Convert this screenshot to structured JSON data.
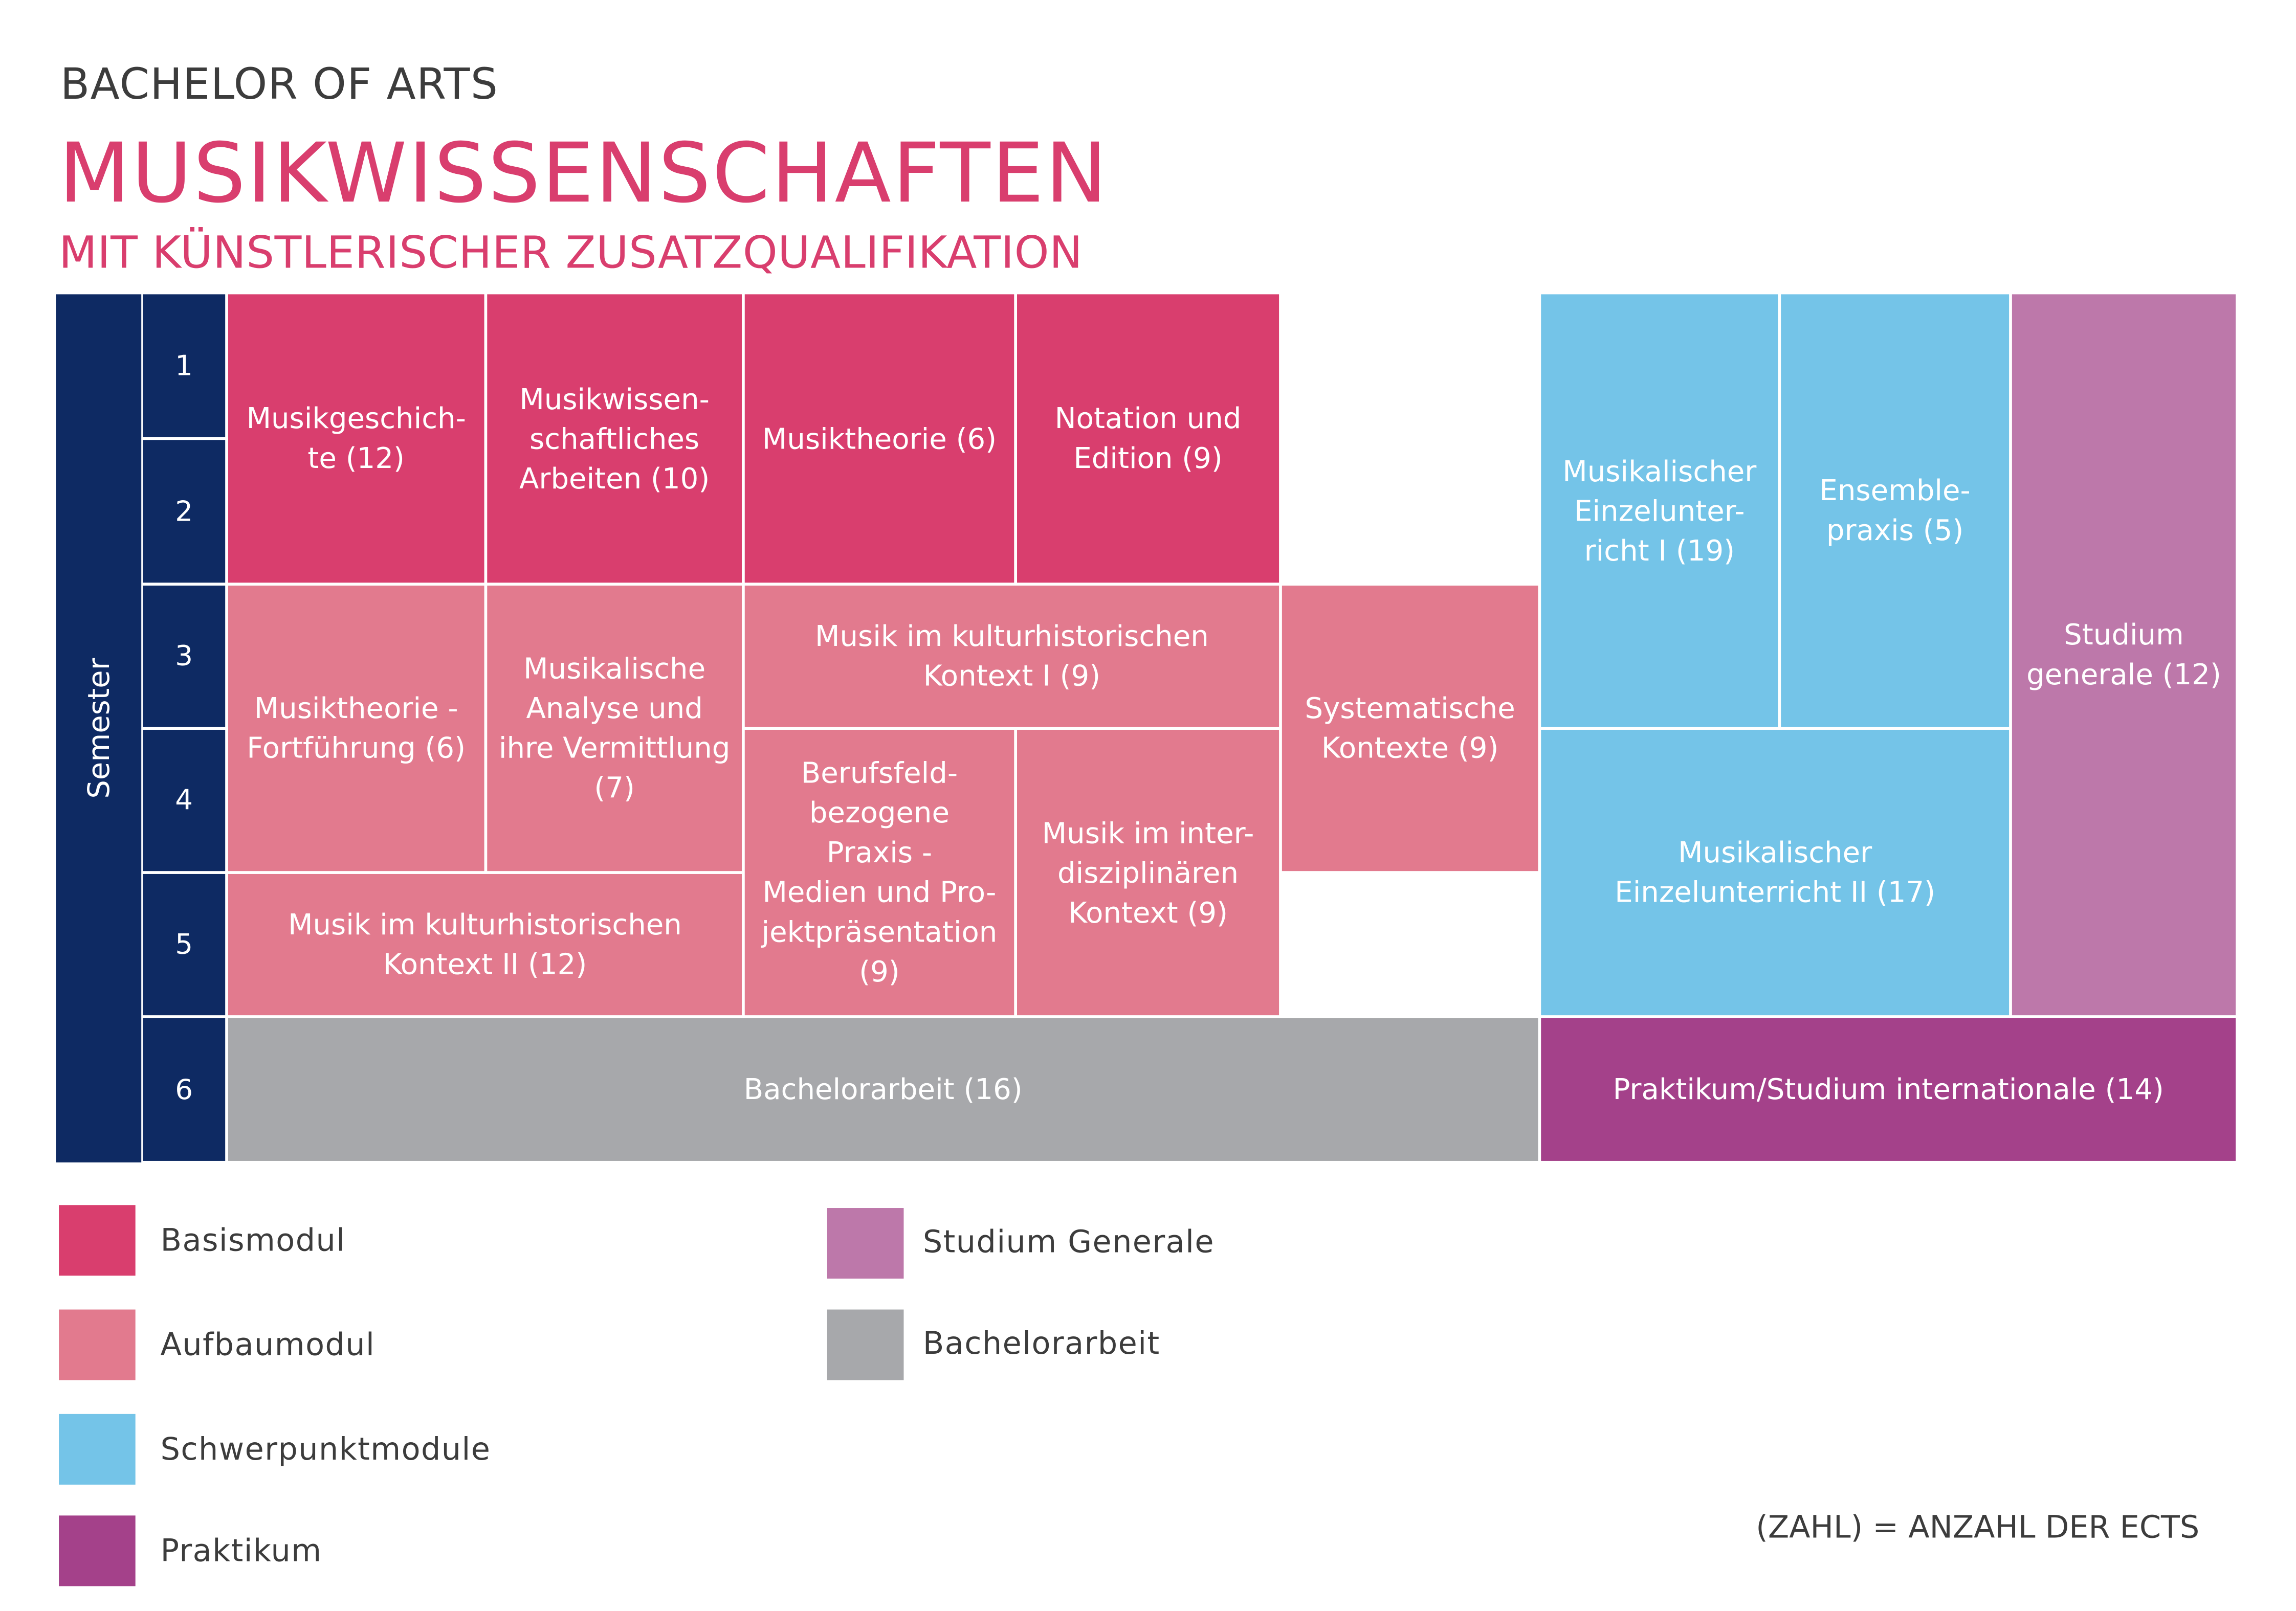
{
  "header": {
    "kicker": "BACHELOR OF ARTS",
    "title": "MUSIKWISSENSCHAFTEN",
    "subtitle": "MIT KÜNSTLERISCHER ZUSATZQUALIFIKATION"
  },
  "semester_label": "Semester",
  "semesters": [
    "1",
    "2",
    "3",
    "4",
    "5",
    "6"
  ],
  "modules": [
    {
      "label": "Musikgeschich-\nte (12)",
      "type": "Basismodul",
      "ects": 12
    },
    {
      "label": "Musikwissen-\nschaftliches\nArbeiten (10)",
      "type": "Basismodul",
      "ects": 10
    },
    {
      "label": "Musiktheorie (6)",
      "type": "Basismodul",
      "ects": 6
    },
    {
      "label": "Notation und\nEdition (9)",
      "type": "Basismodul",
      "ects": 9
    },
    {
      "label": "Musiktheorie -\nFortführung (6)",
      "type": "Aufbaumodul",
      "ects": 6
    },
    {
      "label": "Musikalische\nAnalyse und\nihre Vermittlung\n(7)",
      "type": "Aufbaumodul",
      "ects": 7
    },
    {
      "label": "Musik im kulturhistorischen\nKontext I (9)",
      "type": "Aufbaumodul",
      "ects": 9
    },
    {
      "label": "Systematische\nKontexte (9)",
      "type": "Aufbaumodul",
      "ects": 9
    },
    {
      "label": "Berufsfeld-\nbezogene\nPraxis -\nMedien und Pro-\njektpräsentation\n(9)",
      "type": "Aufbaumodul",
      "ects": 9
    },
    {
      "label": "Musik im inter-\ndisziplinären\nKontext (9)",
      "type": "Aufbaumodul",
      "ects": 9
    },
    {
      "label": "Musik im kulturhistorischen\nKontext II (12)",
      "type": "Aufbaumodul",
      "ects": 12
    },
    {
      "label": "Bachelorarbeit (16)",
      "type": "Bachelorarbeit",
      "ects": 16
    },
    {
      "label": "Musikalischer\nEinzelunter-\nricht I (19)",
      "type": "Schwerpunktmodule",
      "ects": 19
    },
    {
      "label": "Ensemble-\npraxis (5)",
      "type": "Schwerpunktmodule",
      "ects": 5
    },
    {
      "label": "Musikalischer\nEinzelunterricht II (17)",
      "type": "Schwerpunktmodule",
      "ects": 17
    },
    {
      "label": "Studium\ngenerale (12)",
      "type": "Studium Generale",
      "ects": 12
    },
    {
      "label": "Praktikum/Studium internationale (14)",
      "type": "Praktikum",
      "ects": 14
    }
  ],
  "legend": [
    {
      "label": "Basismodul",
      "color": "#d93e6e"
    },
    {
      "label": "Aufbaumodul",
      "color": "#e27a8e"
    },
    {
      "label": "Schwerpunktmodule",
      "color": "#74c4e8"
    },
    {
      "label": "Praktikum",
      "color": "#a4418a"
    },
    {
      "label": "Studium Generale",
      "color": "#bd78aa"
    },
    {
      "label": "Bachelorarbeit",
      "color": "#a7a8ab"
    }
  ],
  "note": "(ZAHL) = ANZAHL DER ECTS"
}
